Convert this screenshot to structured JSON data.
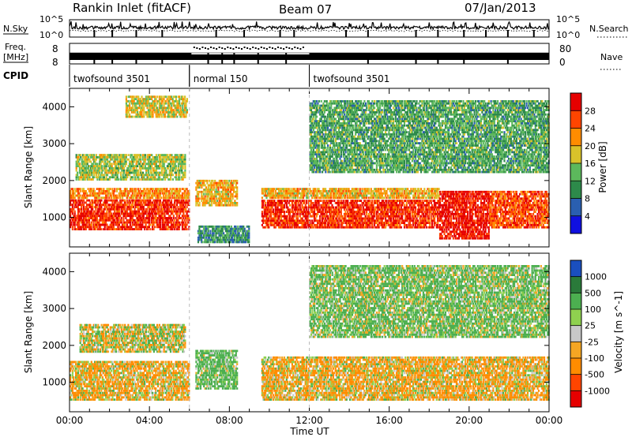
{
  "header": {
    "title": "Rankin Inlet (fitACF)",
    "beam": "Beam 07",
    "date": "07/Jan/2013"
  },
  "top_panels": {
    "nsky_label": "N.Sky",
    "nsky_ticks": [
      "10^5",
      "10^0"
    ],
    "nsearch_label": "N.Search",
    "nsearch_ticks": [
      "10^5",
      "10^0"
    ],
    "freq_label": "Freq.",
    "freq_unit": "[MHz]",
    "freq_ticks": [
      "8",
      "8"
    ],
    "nave_label": "Nave",
    "nave_ticks": [
      "80",
      "0"
    ],
    "cpid_label": "CPID",
    "cpid_segments": [
      {
        "label": "twofsound 3501",
        "start": 0,
        "end": 6
      },
      {
        "label": "normal 150",
        "start": 6,
        "end": 12
      },
      {
        "label": "twofsound 3501",
        "start": 12,
        "end": 24
      }
    ]
  },
  "chart_data": [
    {
      "type": "heatmap",
      "panel": "power",
      "xlabel": "Time UT",
      "ylabel": "Slant Range [km]",
      "xlim": [
        0,
        24
      ],
      "ylim": [
        200,
        4500
      ],
      "yticks": [
        1000,
        2000,
        3000,
        4000
      ],
      "xticks": [
        "00:00",
        "04:00",
        "08:00",
        "12:00",
        "16:00",
        "20:00",
        "00:00"
      ],
      "colorbar": {
        "label": "Power [dB]",
        "ticks": [
          4,
          8,
          12,
          16,
          20,
          24,
          28
        ],
        "range": [
          0,
          32
        ],
        "colors": [
          "#1010e0",
          "#2a5fb0",
          "#2d8a4a",
          "#5cb85c",
          "#d9c22a",
          "#ff8c00",
          "#ff4500",
          "#e60000"
        ]
      },
      "regions": [
        {
          "t0": 0.0,
          "t1": 6.0,
          "r0": 650,
          "r1": 1500,
          "value": 28
        },
        {
          "t0": 0.0,
          "t1": 6.0,
          "r0": 1500,
          "r1": 1800,
          "value": 22
        },
        {
          "t0": 0.3,
          "t1": 5.8,
          "r0": 2000,
          "r1": 2700,
          "value": 16
        },
        {
          "t0": 2.8,
          "t1": 5.9,
          "r0": 3700,
          "r1": 4300,
          "value": 18
        },
        {
          "t0": 6.3,
          "t1": 8.4,
          "r0": 1300,
          "r1": 2000,
          "value": 20
        },
        {
          "t0": 6.4,
          "t1": 9.0,
          "r0": 300,
          "r1": 800,
          "value": 10
        },
        {
          "t0": 9.6,
          "t1": 18.5,
          "r0": 700,
          "r1": 1500,
          "value": 28
        },
        {
          "t0": 9.6,
          "t1": 18.5,
          "r0": 1500,
          "r1": 1800,
          "value": 20
        },
        {
          "t0": 18.5,
          "t1": 21.0,
          "r0": 400,
          "r1": 1700,
          "value": 30
        },
        {
          "t0": 21.0,
          "t1": 24.0,
          "r0": 700,
          "r1": 1700,
          "value": 26
        },
        {
          "t0": 12.0,
          "t1": 24.0,
          "r0": 2200,
          "r1": 4200,
          "value": 12
        }
      ]
    },
    {
      "type": "heatmap",
      "panel": "velocity",
      "xlabel": "Time UT",
      "ylabel": "Slant Range [km]",
      "xlim": [
        0,
        24
      ],
      "ylim": [
        200,
        4500
      ],
      "yticks": [
        1000,
        2000,
        3000,
        4000
      ],
      "xticks": [
        "00:00",
        "04:00",
        "08:00",
        "12:00",
        "16:00",
        "20:00",
        "00:00"
      ],
      "colorbar": {
        "label": "Velocity [m s^-1]",
        "ticks": [
          "1000",
          "500",
          "100",
          "25",
          "-25",
          "-100",
          "-500",
          "-1000"
        ],
        "colors": [
          "#1a4fbf",
          "#2a7a3a",
          "#4caf50",
          "#8fd14f",
          "#c8c8c8",
          "#f5a623",
          "#ff8c00",
          "#ff4500",
          "#e60000"
        ]
      },
      "regions": [
        {
          "t0": 0.0,
          "t1": 6.0,
          "r0": 500,
          "r1": 1600,
          "value": -100
        },
        {
          "t0": 0.5,
          "t1": 5.8,
          "r0": 1800,
          "r1": 2600,
          "value": 0
        },
        {
          "t0": 6.3,
          "t1": 8.4,
          "r0": 800,
          "r1": 1900,
          "value": 200
        },
        {
          "t0": 9.6,
          "t1": 24.0,
          "r0": 500,
          "r1": 1700,
          "value": -100
        },
        {
          "t0": 12.0,
          "t1": 24.0,
          "r0": 2200,
          "r1": 4200,
          "value": 150
        }
      ]
    }
  ]
}
